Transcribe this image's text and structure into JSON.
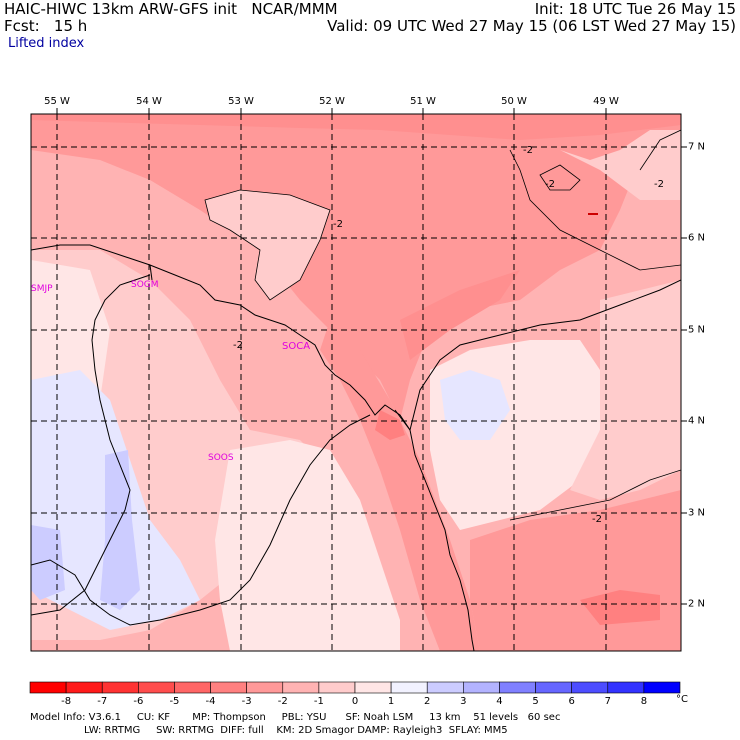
{
  "header": {
    "left1": "HAIC-HIWC 13km ARW-GFS init   NCAR/MMM",
    "left2": "Fcst:   15 h",
    "right1": "Init: 18 UTC Tue 26 May 15",
    "right2": "Valid: 09 UTC Wed 27 May 15 (06 LST Wed 27 May 15)",
    "field": "Lifted index"
  },
  "longitudes": [
    "55 W",
    "54 W",
    "53 W",
    "52 W",
    "51 W",
    "50 W",
    "49 W"
  ],
  "latitudes": [
    "7 N",
    "6 N",
    "5 N",
    "4 N",
    "3 N",
    "2 N"
  ],
  "stations": [
    "SMJP",
    "SOGM",
    "SOCA",
    "SOOS"
  ],
  "contour_labels": [
    "-2",
    "-2",
    "-2",
    "-2",
    "-2",
    "-2"
  ],
  "colorbar": {
    "labels": [
      "-8",
      "-7",
      "-6",
      "-5",
      "-4",
      "-3",
      "-2",
      "-1",
      "0",
      "1",
      "2",
      "3",
      "4",
      "5",
      "6",
      "7",
      "8"
    ],
    "unit": "°C",
    "colors": [
      "#ff1a1a",
      "#ff3333",
      "#ff4d4d",
      "#ff6666",
      "#ff8080",
      "#ff9999",
      "#ffb3b3",
      "#ffcccc",
      "#ffe6e6",
      "#f2f2ff",
      "#ccccff",
      "#b3b3ff",
      "#8080ff",
      "#6666ff",
      "#4d4dff",
      "#3333ff",
      "#0000ff"
    ]
  },
  "footer": {
    "line1": "Model Info: V3.6.1     CU: KF       MP: Thompson     PBL: YSU      SF: Noah LSM     13 km    51 levels   60 sec",
    "line2": "                 LW: RRTMG     SW: RRTMG  DIFF: full    KM: 2D Smagor DAMP: Rayleigh3  SFLAY: MM5"
  }
}
